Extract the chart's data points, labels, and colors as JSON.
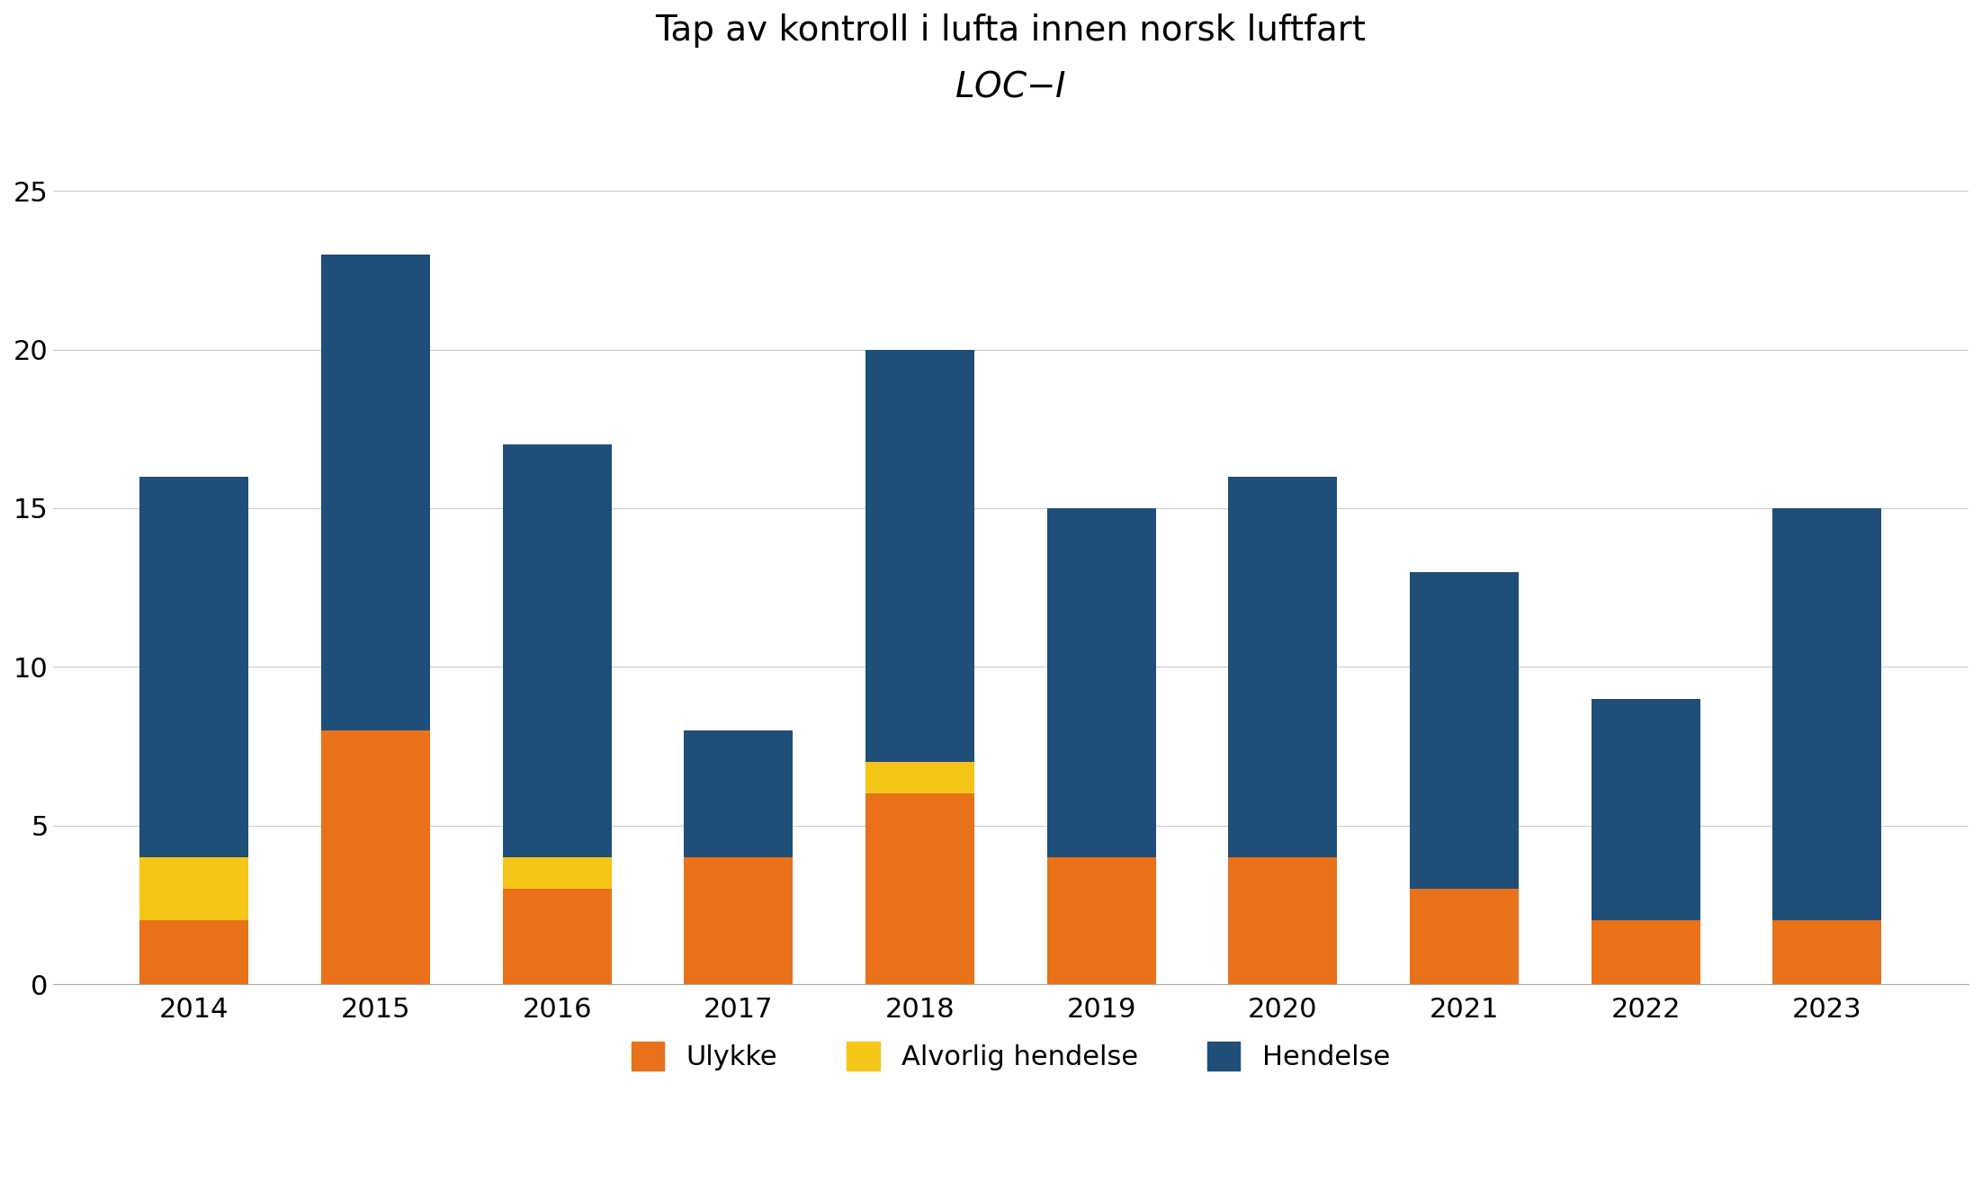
{
  "years": [
    "2014",
    "2015",
    "2016",
    "2017",
    "2018",
    "2019",
    "2020",
    "2021",
    "2022",
    "2023"
  ],
  "ulykke": [
    2,
    8,
    3,
    4,
    6,
    4,
    4,
    3,
    2,
    2
  ],
  "alvorlig_hendelse": [
    2,
    0,
    1,
    0,
    1,
    0,
    0,
    0,
    0,
    0
  ],
  "hendelse": [
    12,
    15,
    13,
    4,
    13,
    11,
    12,
    10,
    7,
    13
  ],
  "color_ulykke": "#E8711A",
  "color_alvorlig": "#F5C518",
  "color_hendelse": "#1F4E79",
  "title_line1": "Tap av kontroll i lufta innen norsk luftfart",
  "legend_ulykke": "Ulykke",
  "legend_alvorlig": "Alvorlig hendelse",
  "legend_hendelse": "Hendelse",
  "ylim": [
    0,
    27
  ],
  "yticks": [
    0,
    5,
    10,
    15,
    20,
    25
  ],
  "background_color": "#FFFFFF"
}
